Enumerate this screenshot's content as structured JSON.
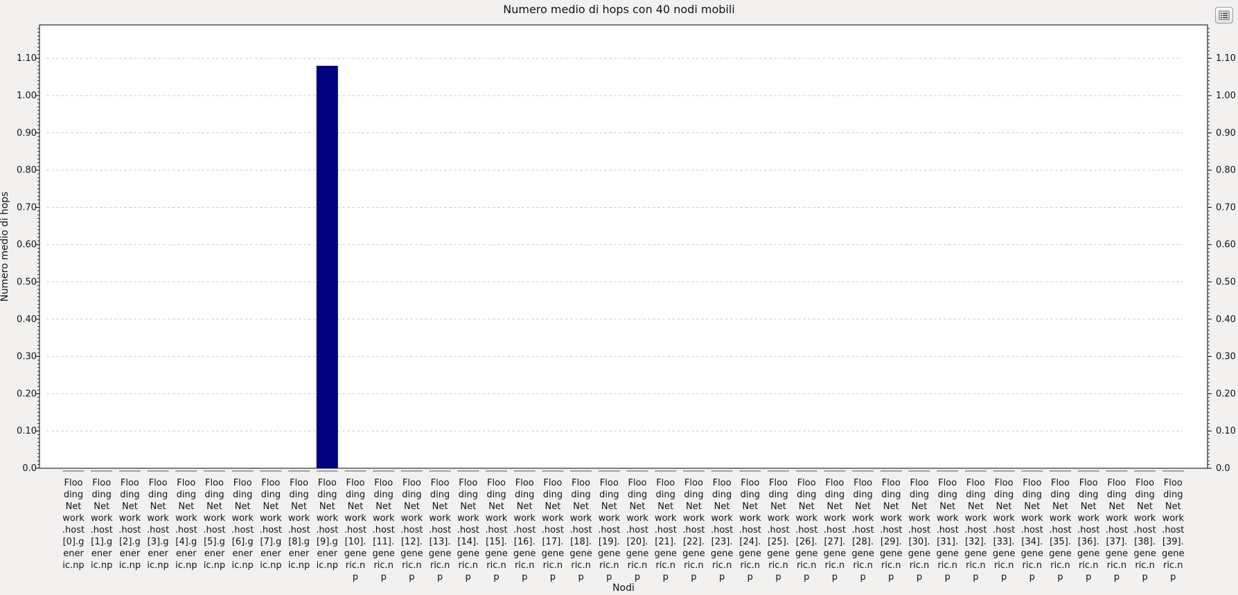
{
  "chart_data": {
    "type": "bar",
    "title": "Numero medio di hops con 40 nodi mobili",
    "xlabel": "Nodi",
    "ylabel": "Numero medio di hops",
    "ylim": [
      0,
      1.19
    ],
    "yticks": [
      "0.0",
      "0.10",
      "0.20",
      "0.30",
      "0.40",
      "0.50",
      "0.60",
      "0.70",
      "0.80",
      "0.90",
      "1.00",
      "1.10"
    ],
    "grid": true,
    "bar_color": "#000080",
    "categories": [
      [
        "Floo",
        "ding",
        "Net",
        "work",
        ".host",
        "[0].g",
        "ener",
        "ic.np"
      ],
      [
        "Floo",
        "ding",
        "Net",
        "work",
        ".host",
        "[1].g",
        "ener",
        "ic.np"
      ],
      [
        "Floo",
        "ding",
        "Net",
        "work",
        ".host",
        "[2].g",
        "ener",
        "ic.np"
      ],
      [
        "Floo",
        "ding",
        "Net",
        "work",
        ".host",
        "[3].g",
        "ener",
        "ic.np"
      ],
      [
        "Floo",
        "ding",
        "Net",
        "work",
        ".host",
        "[4].g",
        "ener",
        "ic.np"
      ],
      [
        "Floo",
        "ding",
        "Net",
        "work",
        ".host",
        "[5].g",
        "ener",
        "ic.np"
      ],
      [
        "Floo",
        "ding",
        "Net",
        "work",
        ".host",
        "[6].g",
        "ener",
        "ic.np"
      ],
      [
        "Floo",
        "ding",
        "Net",
        "work",
        ".host",
        "[7].g",
        "ener",
        "ic.np"
      ],
      [
        "Floo",
        "ding",
        "Net",
        "work",
        ".host",
        "[8].g",
        "ener",
        "ic.np"
      ],
      [
        "Floo",
        "ding",
        "Net",
        "work",
        ".host",
        "[9].g",
        "ener",
        "ic.np"
      ],
      [
        "Floo",
        "ding",
        "Net",
        "work",
        ".host",
        "[10].",
        "gene",
        "ric.n",
        "p"
      ],
      [
        "Floo",
        "ding",
        "Net",
        "work",
        ".host",
        "[11].",
        "gene",
        "ric.n",
        "p"
      ],
      [
        "Floo",
        "ding",
        "Net",
        "work",
        ".host",
        "[12].",
        "gene",
        "ric.n",
        "p"
      ],
      [
        "Floo",
        "ding",
        "Net",
        "work",
        ".host",
        "[13].",
        "gene",
        "ric.n",
        "p"
      ],
      [
        "Floo",
        "ding",
        "Net",
        "work",
        ".host",
        "[14].",
        "gene",
        "ric.n",
        "p"
      ],
      [
        "Floo",
        "ding",
        "Net",
        "work",
        ".host",
        "[15].",
        "gene",
        "ric.n",
        "p"
      ],
      [
        "Floo",
        "ding",
        "Net",
        "work",
        ".host",
        "[16].",
        "gene",
        "ric.n",
        "p"
      ],
      [
        "Floo",
        "ding",
        "Net",
        "work",
        ".host",
        "[17].",
        "gene",
        "ric.n",
        "p"
      ],
      [
        "Floo",
        "ding",
        "Net",
        "work",
        ".host",
        "[18].",
        "gene",
        "ric.n",
        "p"
      ],
      [
        "Floo",
        "ding",
        "Net",
        "work",
        ".host",
        "[19].",
        "gene",
        "ric.n",
        "p"
      ],
      [
        "Floo",
        "ding",
        "Net",
        "work",
        ".host",
        "[20].",
        "gene",
        "ric.n",
        "p"
      ],
      [
        "Floo",
        "ding",
        "Net",
        "work",
        ".host",
        "[21].",
        "gene",
        "ric.n",
        "p"
      ],
      [
        "Floo",
        "ding",
        "Net",
        "work",
        ".host",
        "[22].",
        "gene",
        "ric.n",
        "p"
      ],
      [
        "Floo",
        "ding",
        "Net",
        "work",
        ".host",
        "[23].",
        "gene",
        "ric.n",
        "p"
      ],
      [
        "Floo",
        "ding",
        "Net",
        "work",
        ".host",
        "[24].",
        "gene",
        "ric.n",
        "p"
      ],
      [
        "Floo",
        "ding",
        "Net",
        "work",
        ".host",
        "[25].",
        "gene",
        "ric.n",
        "p"
      ],
      [
        "Floo",
        "ding",
        "Net",
        "work",
        ".host",
        "[26].",
        "gene",
        "ric.n",
        "p"
      ],
      [
        "Floo",
        "ding",
        "Net",
        "work",
        ".host",
        "[27].",
        "gene",
        "ric.n",
        "p"
      ],
      [
        "Floo",
        "ding",
        "Net",
        "work",
        ".host",
        "[28].",
        "gene",
        "ric.n",
        "p"
      ],
      [
        "Floo",
        "ding",
        "Net",
        "work",
        ".host",
        "[29].",
        "gene",
        "ric.n",
        "p"
      ],
      [
        "Floo",
        "ding",
        "Net",
        "work",
        ".host",
        "[30].",
        "gene",
        "ric.n",
        "p"
      ],
      [
        "Floo",
        "ding",
        "Net",
        "work",
        ".host",
        "[31].",
        "gene",
        "ric.n",
        "p"
      ],
      [
        "Floo",
        "ding",
        "Net",
        "work",
        ".host",
        "[32].",
        "gene",
        "ric.n",
        "p"
      ],
      [
        "Floo",
        "ding",
        "Net",
        "work",
        ".host",
        "[33].",
        "gene",
        "ric.n",
        "p"
      ],
      [
        "Floo",
        "ding",
        "Net",
        "work",
        ".host",
        "[34].",
        "gene",
        "ric.n",
        "p"
      ],
      [
        "Floo",
        "ding",
        "Net",
        "work",
        ".host",
        "[35].",
        "gene",
        "ric.n",
        "p"
      ],
      [
        "Floo",
        "ding",
        "Net",
        "work",
        ".host",
        "[36].",
        "gene",
        "ric.n",
        "p"
      ],
      [
        "Floo",
        "ding",
        "Net",
        "work",
        ".host",
        "[37].",
        "gene",
        "ric.n",
        "p"
      ],
      [
        "Floo",
        "ding",
        "Net",
        "work",
        ".host",
        "[38].",
        "gene",
        "ric.n",
        "p"
      ],
      [
        "Floo",
        "ding",
        "Net",
        "work",
        ".host",
        "[39].",
        "gene",
        "ric.n",
        "p"
      ]
    ],
    "values": [
      0,
      0,
      0,
      0,
      0,
      0,
      0,
      0,
      0,
      1.08,
      0,
      0,
      0,
      0,
      0,
      0,
      0,
      0,
      0,
      0,
      0,
      0,
      0,
      0,
      0,
      0,
      0,
      0,
      0,
      0,
      0,
      0,
      0,
      0,
      0,
      0,
      0,
      0,
      0,
      0
    ]
  },
  "toolbar": {
    "options_icon": "list-icon"
  }
}
